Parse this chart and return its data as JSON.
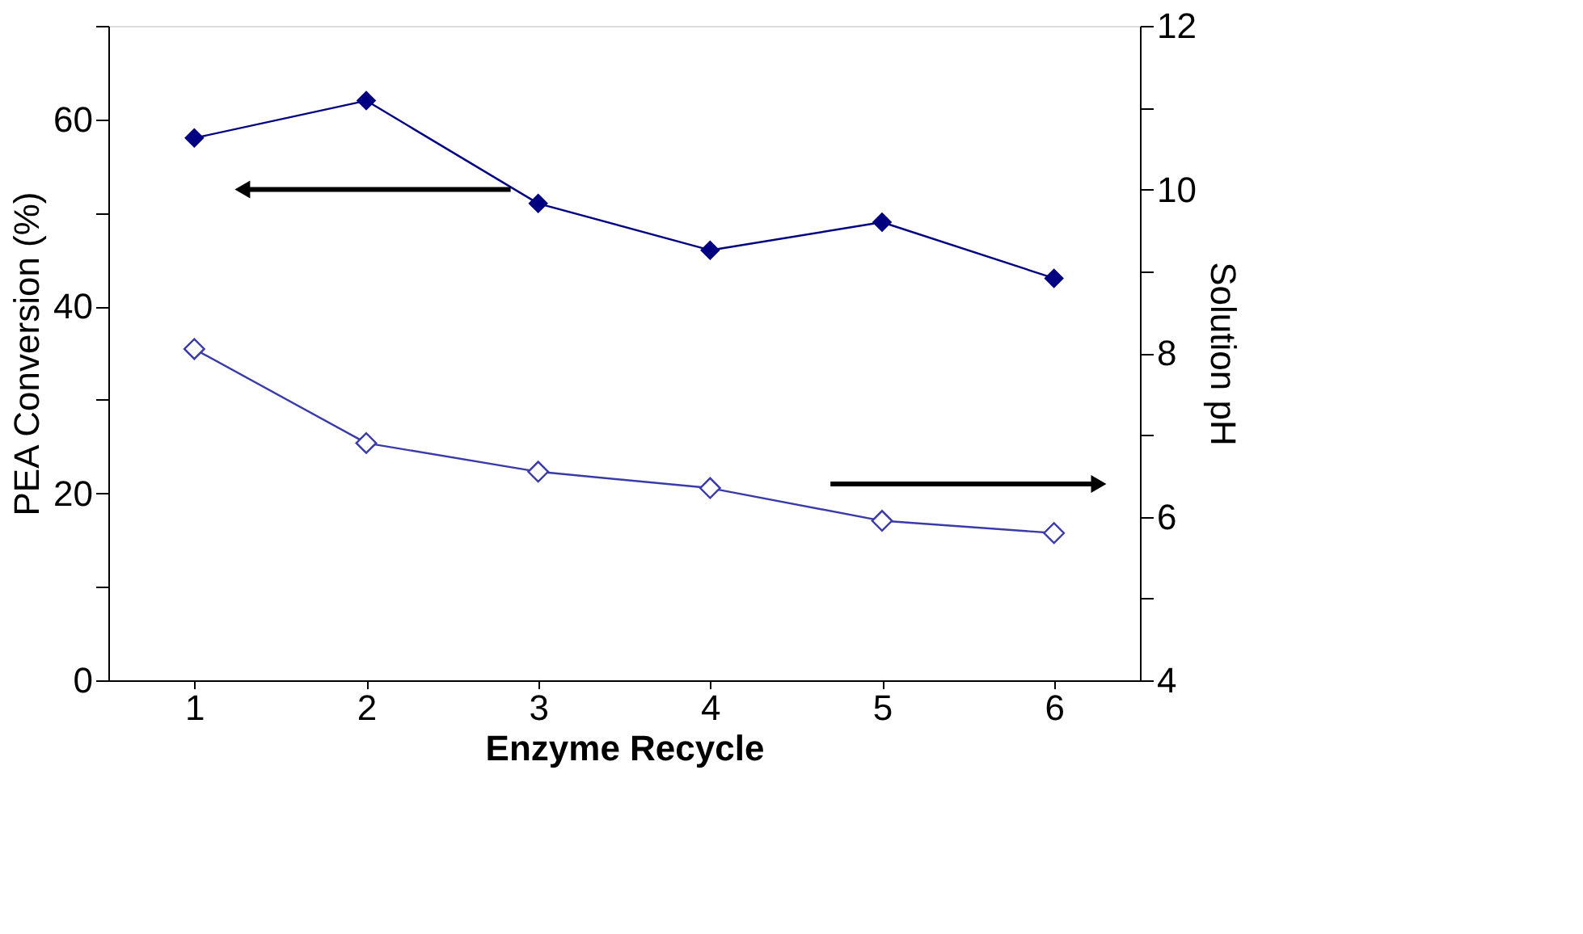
{
  "chart_data": {
    "type": "line",
    "xlabel": "Enzyme Recycle",
    "ylabel": "PEA Conversion (%)",
    "y2label": "Solution pH",
    "categories": [
      "1",
      "2",
      "3",
      "4",
      "5",
      "6"
    ],
    "series": [
      {
        "color": "#000080",
        "values": [
          58,
          62,
          51,
          46,
          49,
          43
        ]
      },
      {
        "color": "#3a3aa8",
        "axis": "y2",
        "values": [
          8.05,
          6.9,
          6.55,
          6.35,
          5.95,
          5.8
        ]
      }
    ],
    "ylim": [
      0,
      70
    ],
    "yticks": [
      0,
      {
        "value": 10,
        "label": null
      },
      20,
      {
        "value": 30,
        "label": null
      },
      40,
      {
        "value": 50,
        "label": null
      },
      60,
      {
        "value": 70,
        "label": null
      }
    ],
    "y2lim": [
      4,
      12
    ],
    "y2ticks": [
      4,
      {
        "value": 5,
        "label": null
      },
      6,
      {
        "value": 7,
        "label": null
      },
      8,
      {
        "value": 9,
        "label": null
      },
      10,
      {
        "value": 11,
        "label": null
      },
      12
    ],
    "marker": "diamond",
    "line_style": "solid",
    "grid": false
  }
}
